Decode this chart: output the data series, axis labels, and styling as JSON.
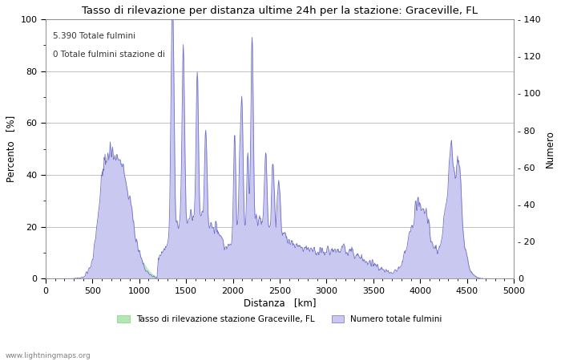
{
  "title": "Tasso di rilevazione per distanza ultime 24h per la stazione: Graceville, FL",
  "xlabel": "Distanza   [km]",
  "ylabel_left": "Percento   [%]",
  "ylabel_right": "Numero",
  "annotation_line1": "5.390 Totale fulmini",
  "annotation_line2": "0 Totale fulmini stazione di",
  "watermark": "www.lightningmaps.org",
  "xlim": [
    0,
    5000
  ],
  "ylim_left": [
    0,
    100
  ],
  "ylim_right": [
    0,
    140
  ],
  "xticks": [
    0,
    500,
    1000,
    1500,
    2000,
    2500,
    3000,
    3500,
    4000,
    4500,
    5000
  ],
  "yticks_left": [
    0,
    20,
    40,
    60,
    80,
    100
  ],
  "yticks_right": [
    0,
    20,
    40,
    60,
    80,
    100,
    120,
    140
  ],
  "legend_label_green": "Tasso di rilevazione stazione Graceville, FL",
  "legend_label_blue": "Numero totale fulmini",
  "fill_color_blue": "#c8c8f0",
  "fill_color_green": "#b0e8b0",
  "line_color": "#7070c8",
  "bg_color": "#ffffff",
  "grid_color": "#aaaaaa",
  "title_fontsize": 9.5,
  "axis_fontsize": 8.5,
  "tick_fontsize": 8,
  "annotation_fontsize": 7.5
}
